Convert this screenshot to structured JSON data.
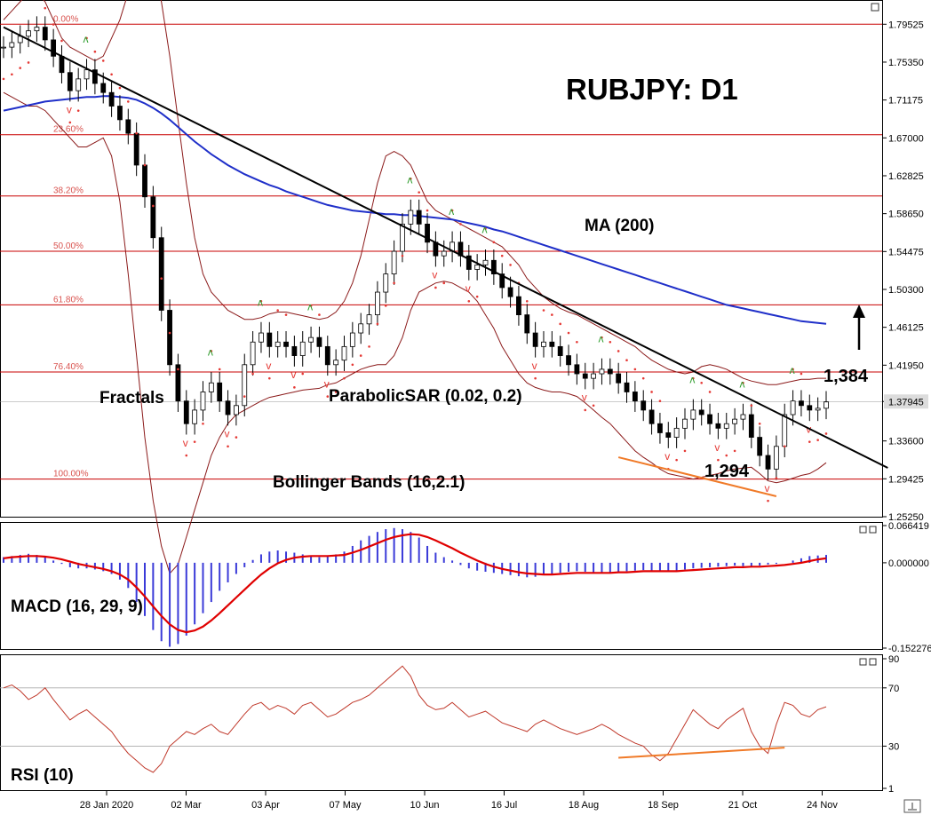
{
  "chart_title": "RUBJPY: D1",
  "colors": {
    "fib": "#d9534f",
    "ma": "#1f2fc9",
    "bands": "#8b1a1a",
    "sar": "#e53935",
    "fractal_up": "#2e9e2e",
    "fractal_down": "#e53935",
    "macd_signal": "#e00000",
    "macd_hist": "#3a3ad8",
    "rsi": "#c0392b",
    "trend_orange": "#f07a28",
    "level": "#c80000"
  },
  "annotations": {
    "fractals": "Fractals",
    "parabolic_sar": "ParabolicSAR (0.02, 0.2)",
    "bollinger": "Bollinger Bands (16,2.1)",
    "ma": "MA (200)",
    "level_high": "1,384",
    "level_low": "1,294",
    "macd": "MACD (16, 29, 9)",
    "rsi": "RSI (10)",
    "arrow": "up-arrow-icon"
  },
  "chart_data": [
    {
      "type": "candlestick",
      "title": "RUBJPY: D1",
      "ylim": [
        1.2525,
        1.82
      ],
      "y_ticks": [
        "1.79525",
        "1.75350",
        "1.71175",
        "1.67000",
        "1.62825",
        "1.58650",
        "1.54475",
        "1.50300",
        "1.46125",
        "1.41950",
        "1.37945",
        "1.33600",
        "1.29425",
        "1.25250"
      ],
      "current_price": "1.37945",
      "x_ticks": [
        "28 Jan 2020",
        "02 Mar",
        "03 Apr",
        "07 May",
        "10 Jun",
        "16 Jul",
        "18 Aug",
        "18 Sep",
        "21 Oct",
        "24 Nov"
      ],
      "fibonacci": [
        {
          "label": "0.00%",
          "value": 1.79525
        },
        {
          "label": "23.60%",
          "value": 1.6735
        },
        {
          "label": "38.20%",
          "value": 1.606
        },
        {
          "label": "50.00%",
          "value": 1.545
        },
        {
          "label": "61.80%",
          "value": 1.486
        },
        {
          "label": "76.40%",
          "value": 1.412
        },
        {
          "label": "100.00%",
          "value": 1.294
        }
      ],
      "close": [
        1.77,
        1.775,
        1.782,
        1.788,
        1.792,
        1.778,
        1.76,
        1.742,
        1.722,
        1.735,
        1.745,
        1.73,
        1.72,
        1.705,
        1.69,
        1.675,
        1.64,
        1.605,
        1.56,
        1.48,
        1.42,
        1.38,
        1.355,
        1.37,
        1.39,
        1.4,
        1.38,
        1.365,
        1.375,
        1.42,
        1.445,
        1.455,
        1.44,
        1.445,
        1.44,
        1.43,
        1.445,
        1.45,
        1.44,
        1.42,
        1.425,
        1.44,
        1.455,
        1.465,
        1.475,
        1.5,
        1.52,
        1.545,
        1.575,
        1.59,
        1.575,
        1.555,
        1.54,
        1.545,
        1.555,
        1.54,
        1.525,
        1.53,
        1.535,
        1.52,
        1.505,
        1.495,
        1.475,
        1.455,
        1.44,
        1.445,
        1.44,
        1.43,
        1.42,
        1.41,
        1.405,
        1.41,
        1.415,
        1.41,
        1.4,
        1.39,
        1.38,
        1.37,
        1.355,
        1.345,
        1.34,
        1.35,
        1.36,
        1.37,
        1.365,
        1.355,
        1.35,
        1.355,
        1.36,
        1.365,
        1.34,
        1.32,
        1.305,
        1.33,
        1.365,
        1.38,
        1.375,
        1.37,
        1.372,
        1.379
      ],
      "ma200": [
        1.7,
        1.702,
        1.704,
        1.706,
        1.708,
        1.71,
        1.711,
        1.712,
        1.713,
        1.714,
        1.715,
        1.715,
        1.716,
        1.716,
        1.715,
        1.714,
        1.712,
        1.708,
        1.703,
        1.697,
        1.69,
        1.682,
        1.674,
        1.666,
        1.659,
        1.652,
        1.646,
        1.64,
        1.635,
        1.63,
        1.626,
        1.622,
        1.618,
        1.615,
        1.611,
        1.608,
        1.605,
        1.602,
        1.599,
        1.596,
        1.594,
        1.592,
        1.59,
        1.589,
        1.588,
        1.587,
        1.586,
        1.586,
        1.585,
        1.585,
        1.584,
        1.583,
        1.582,
        1.581,
        1.58,
        1.578,
        1.576,
        1.574,
        1.572,
        1.569,
        1.567,
        1.564,
        1.561,
        1.558,
        1.555,
        1.552,
        1.549,
        1.546,
        1.543,
        1.54,
        1.537,
        1.534,
        1.531,
        1.528,
        1.525,
        1.522,
        1.519,
        1.516,
        1.513,
        1.51,
        1.507,
        1.504,
        1.501,
        1.498,
        1.495,
        1.492,
        1.489,
        1.486,
        1.484,
        1.482,
        1.48,
        1.478,
        1.476,
        1.474,
        1.472,
        1.47,
        1.468,
        1.467,
        1.466,
        1.465
      ],
      "bb_upper": [
        1.8,
        1.81,
        1.82,
        1.83,
        1.83,
        1.82,
        1.8,
        1.78,
        1.77,
        1.765,
        1.76,
        1.755,
        1.76,
        1.78,
        1.8,
        1.83,
        1.85,
        1.87,
        1.86,
        1.82,
        1.76,
        1.69,
        1.62,
        1.56,
        1.52,
        1.5,
        1.49,
        1.48,
        1.475,
        1.47,
        1.47,
        1.472,
        1.476,
        1.478,
        1.478,
        1.476,
        1.474,
        1.472,
        1.47,
        1.472,
        1.478,
        1.49,
        1.51,
        1.54,
        1.58,
        1.62,
        1.65,
        1.655,
        1.65,
        1.64,
        1.62,
        1.6,
        1.59,
        1.585,
        1.58,
        1.575,
        1.57,
        1.565,
        1.56,
        1.555,
        1.55,
        1.54,
        1.53,
        1.515,
        1.505,
        1.495,
        1.488,
        1.482,
        1.478,
        1.475,
        1.47,
        1.465,
        1.46,
        1.455,
        1.45,
        1.445,
        1.44,
        1.432,
        1.425,
        1.42,
        1.415,
        1.412,
        1.41,
        1.412,
        1.418,
        1.42,
        1.418,
        1.415,
        1.41,
        1.405,
        1.402,
        1.4,
        1.398,
        1.398,
        1.4,
        1.402,
        1.404,
        1.404,
        1.405,
        1.405
      ],
      "bb_lower": [
        1.72,
        1.715,
        1.71,
        1.705,
        1.705,
        1.7,
        1.69,
        1.68,
        1.67,
        1.66,
        1.66,
        1.665,
        1.67,
        1.65,
        1.6,
        1.52,
        1.43,
        1.34,
        1.27,
        1.22,
        1.19,
        1.2,
        1.23,
        1.26,
        1.29,
        1.32,
        1.34,
        1.355,
        1.365,
        1.37,
        1.375,
        1.38,
        1.384,
        1.386,
        1.388,
        1.39,
        1.392,
        1.393,
        1.394,
        1.398,
        1.4,
        1.405,
        1.41,
        1.415,
        1.418,
        1.42,
        1.42,
        1.43,
        1.45,
        1.48,
        1.5,
        1.505,
        1.51,
        1.512,
        1.51,
        1.505,
        1.5,
        1.49,
        1.475,
        1.46,
        1.44,
        1.425,
        1.41,
        1.4,
        1.395,
        1.392,
        1.39,
        1.39,
        1.388,
        1.385,
        1.378,
        1.37,
        1.362,
        1.355,
        1.345,
        1.335,
        1.325,
        1.318,
        1.312,
        1.305,
        1.3,
        1.298,
        1.296,
        1.294,
        1.296,
        1.298,
        1.3,
        1.303,
        1.305,
        1.306,
        1.307,
        1.3,
        1.292,
        1.29,
        1.292,
        1.295,
        1.298,
        1.3,
        1.305,
        1.312
      ],
      "trendline": {
        "from": [
          0,
          1.792
        ],
        "to": [
          100,
          1.322
        ]
      },
      "support_line": {
        "from": [
          74,
          1.318
        ],
        "to": [
          93,
          1.275
        ]
      },
      "level_high_value": 1.384,
      "level_low_value": 1.294
    },
    {
      "type": "bar",
      "title": "MACD (16, 29, 9)",
      "y_ticks": [
        "0.066419",
        "0.000000",
        "-0.152276"
      ],
      "ylim": [
        -0.1523,
        0.0664
      ],
      "histogram": [
        0.01,
        0.012,
        0.014,
        0.016,
        0.014,
        0.01,
        0.004,
        -0.002,
        -0.008,
        -0.01,
        -0.01,
        -0.012,
        -0.015,
        -0.02,
        -0.03,
        -0.045,
        -0.07,
        -0.095,
        -0.12,
        -0.14,
        -0.15,
        -0.145,
        -0.13,
        -0.11,
        -0.09,
        -0.07,
        -0.05,
        -0.035,
        -0.02,
        -0.008,
        0.005,
        0.015,
        0.02,
        0.022,
        0.02,
        0.018,
        0.015,
        0.012,
        0.01,
        0.012,
        0.015,
        0.02,
        0.03,
        0.04,
        0.048,
        0.055,
        0.06,
        0.062,
        0.06,
        0.055,
        0.045,
        0.03,
        0.018,
        0.01,
        0.004,
        -0.004,
        -0.01,
        -0.014,
        -0.016,
        -0.018,
        -0.02,
        -0.022,
        -0.024,
        -0.026,
        -0.025,
        -0.022,
        -0.02,
        -0.018,
        -0.016,
        -0.015,
        -0.016,
        -0.017,
        -0.018,
        -0.017,
        -0.016,
        -0.015,
        -0.014,
        -0.013,
        -0.014,
        -0.015,
        -0.016,
        -0.014,
        -0.012,
        -0.01,
        -0.009,
        -0.008,
        -0.007,
        -0.006,
        -0.005,
        -0.006,
        -0.007,
        -0.005,
        -0.003,
        -0.002,
        0.0,
        0.004,
        0.008,
        0.012,
        0.013,
        0.014
      ],
      "signal": [
        0.008,
        0.01,
        0.011,
        0.012,
        0.012,
        0.011,
        0.009,
        0.006,
        0.002,
        -0.002,
        -0.005,
        -0.008,
        -0.011,
        -0.015,
        -0.021,
        -0.03,
        -0.044,
        -0.06,
        -0.078,
        -0.095,
        -0.11,
        -0.12,
        -0.124,
        -0.121,
        -0.114,
        -0.103,
        -0.09,
        -0.076,
        -0.062,
        -0.048,
        -0.034,
        -0.021,
        -0.01,
        -0.001,
        0.005,
        0.009,
        0.011,
        0.012,
        0.012,
        0.012,
        0.013,
        0.014,
        0.018,
        0.023,
        0.029,
        0.035,
        0.041,
        0.046,
        0.049,
        0.051,
        0.05,
        0.046,
        0.04,
        0.033,
        0.026,
        0.018,
        0.011,
        0.004,
        -0.002,
        -0.007,
        -0.011,
        -0.014,
        -0.017,
        -0.019,
        -0.02,
        -0.021,
        -0.021,
        -0.02,
        -0.019,
        -0.018,
        -0.018,
        -0.018,
        -0.018,
        -0.018,
        -0.017,
        -0.017,
        -0.016,
        -0.015,
        -0.015,
        -0.015,
        -0.015,
        -0.015,
        -0.014,
        -0.013,
        -0.012,
        -0.011,
        -0.01,
        -0.009,
        -0.008,
        -0.008,
        -0.007,
        -0.007,
        -0.006,
        -0.005,
        -0.004,
        -0.002,
        0.0,
        0.003,
        0.006,
        0.008
      ]
    },
    {
      "type": "line",
      "title": "RSI (10)",
      "y_ticks": [
        "90",
        "70",
        "30",
        "1"
      ],
      "ylim": [
        1,
        90
      ],
      "values": [
        70,
        72,
        68,
        62,
        65,
        70,
        62,
        55,
        48,
        52,
        55,
        50,
        45,
        40,
        32,
        25,
        20,
        15,
        12,
        18,
        30,
        35,
        40,
        38,
        42,
        45,
        40,
        38,
        45,
        52,
        58,
        60,
        55,
        58,
        56,
        52,
        58,
        60,
        55,
        50,
        52,
        56,
        60,
        62,
        65,
        70,
        75,
        80,
        85,
        78,
        65,
        58,
        55,
        56,
        60,
        55,
        50,
        52,
        54,
        50,
        46,
        44,
        42,
        40,
        45,
        48,
        45,
        42,
        40,
        38,
        40,
        42,
        45,
        42,
        38,
        35,
        32,
        30,
        24,
        20,
        25,
        35,
        45,
        55,
        50,
        45,
        42,
        48,
        52,
        56,
        40,
        30,
        25,
        45,
        60,
        58,
        52,
        50,
        55,
        57
      ],
      "support_line": {
        "from": [
          74,
          22
        ],
        "to": [
          94,
          29
        ]
      },
      "levels": [
        70,
        30
      ]
    }
  ]
}
